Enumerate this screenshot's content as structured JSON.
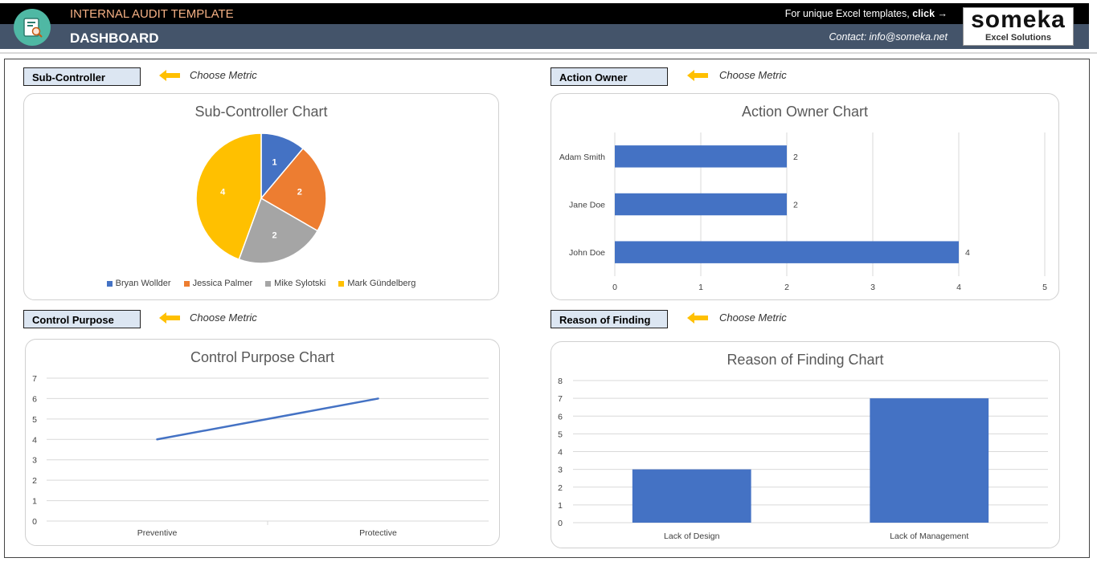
{
  "header": {
    "app_title": "INTERNAL AUDIT TEMPLATE",
    "page_title": "DASHBOARD",
    "promo_text": "For unique Excel templates, ",
    "promo_link": "click →",
    "contact": "Contact: info@someka.net",
    "brand_name": "someka",
    "brand_sub": "Excel Solutions",
    "icon": "audit-document-icon"
  },
  "colors": {
    "header_top": "#000000",
    "header_bottom": "#44546a",
    "accent_orange": "#f4b084",
    "metric_box": "#dce6f2",
    "arrow": "#ffc000",
    "series_blue": "#4472c4",
    "series_orange": "#ed7d31",
    "series_gray": "#a5a5a5",
    "series_yellow": "#ffc000"
  },
  "panels": {
    "sub_controller": {
      "metric_label": "Sub-Controller",
      "choose": "Choose Metric"
    },
    "action_owner": {
      "metric_label": "Action Owner",
      "choose": "Choose Metric"
    },
    "control_purpose": {
      "metric_label": "Control Purpose",
      "choose": "Choose Metric"
    },
    "reason_of_finding": {
      "metric_label": "Reason of Finding",
      "choose": "Choose Metric"
    }
  },
  "chart_data": [
    {
      "type": "pie",
      "title": "Sub-Controller Chart",
      "categories": [
        "Bryan Wollder",
        "Jessica Palmer",
        "Mike Sylotski",
        "Mark Gündelberg"
      ],
      "values": [
        1,
        2,
        2,
        4
      ],
      "legend": "bottom"
    },
    {
      "type": "bar",
      "orientation": "horizontal",
      "title": "Action Owner Chart",
      "categories": [
        "Adam Smith",
        "Jane Doe",
        "John Doe"
      ],
      "values": [
        2,
        2,
        4
      ],
      "xlim": [
        0,
        5
      ],
      "ticks": [
        "0",
        "1",
        "2",
        "3",
        "4",
        "5"
      ],
      "grid": true
    },
    {
      "type": "line",
      "title": "Control Purpose Chart",
      "categories": [
        "Preventive",
        "Protective"
      ],
      "values": [
        4,
        6
      ],
      "ylim": [
        0,
        7
      ],
      "ticks": [
        "0",
        "1",
        "2",
        "3",
        "4",
        "5",
        "6",
        "7"
      ],
      "grid": true
    },
    {
      "type": "bar",
      "title": "Reason of Finding Chart",
      "categories": [
        "Lack of Design",
        "Lack of Management"
      ],
      "values": [
        3,
        7
      ],
      "ylim": [
        0,
        8
      ],
      "ticks": [
        "0",
        "1",
        "2",
        "3",
        "4",
        "5",
        "6",
        "7",
        "8"
      ],
      "grid": true
    }
  ]
}
